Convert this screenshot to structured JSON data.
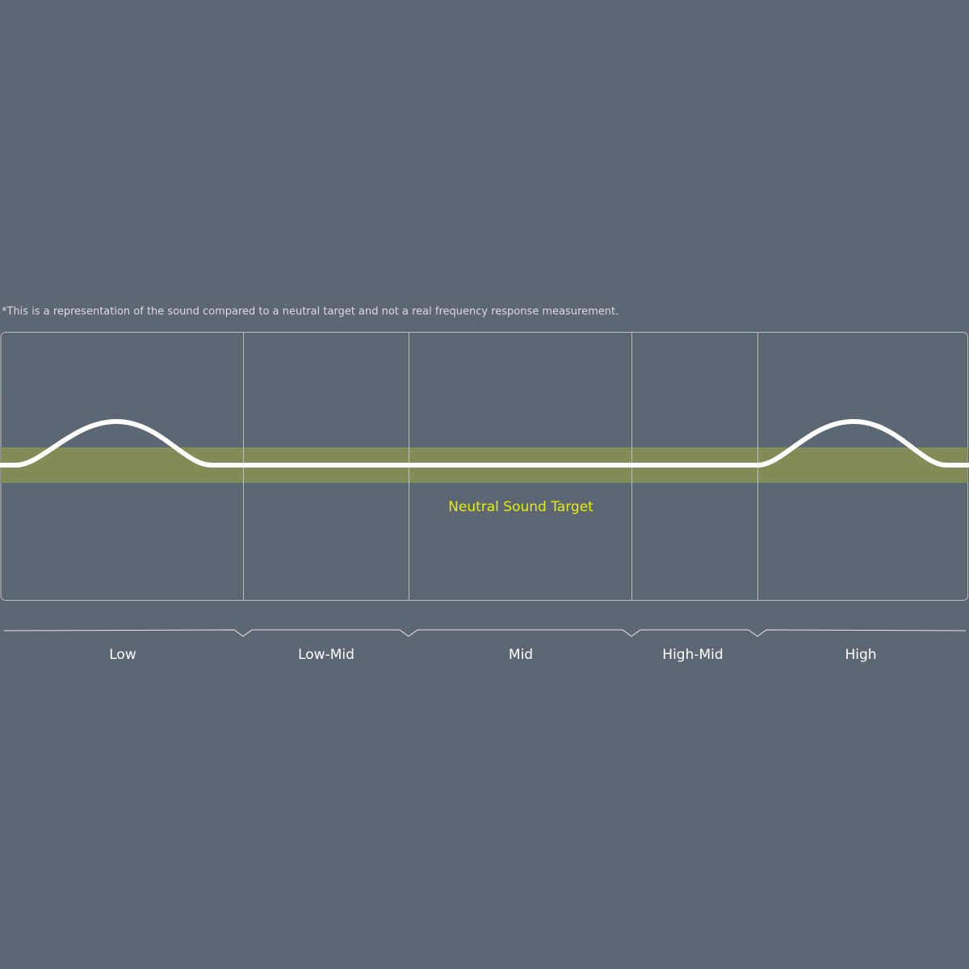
{
  "note": "*This is a representation of the sound compared to a neutral target and not a real frequency response measurement.",
  "target_label": "Neutral Sound Target",
  "bands": [
    "Low",
    "Low-Mid",
    "Mid",
    "High-Mid",
    "High"
  ]
}
